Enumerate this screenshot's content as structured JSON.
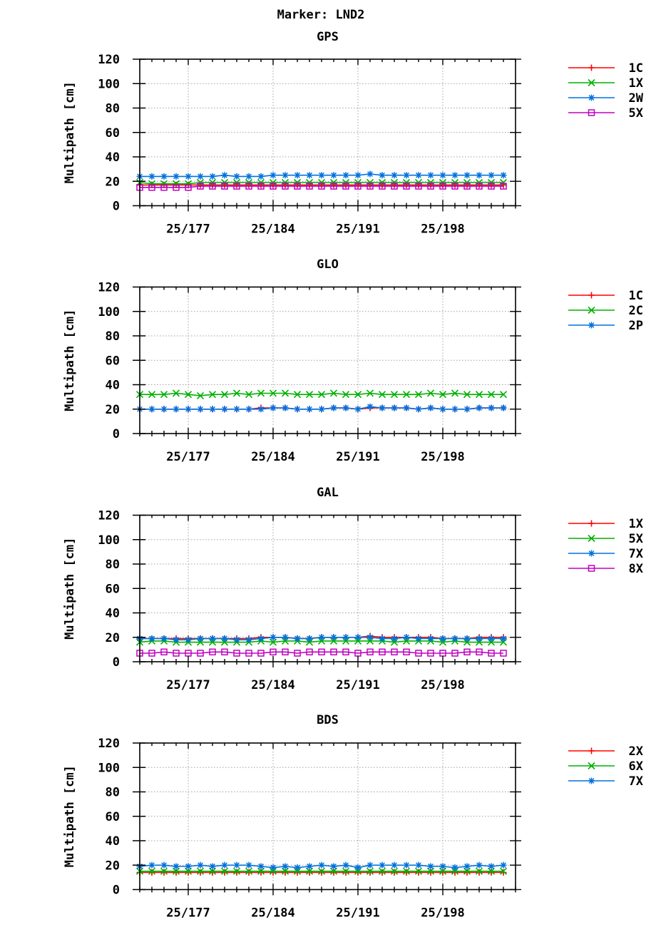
{
  "title": "Marker: LND2",
  "ylabel": "Multipath [cm]",
  "chart_data": [
    {
      "type": "line",
      "title": "GPS",
      "ylabel": "Multipath [cm]",
      "ylim": [
        0,
        120
      ],
      "yticks": [
        0,
        20,
        40,
        60,
        80,
        100,
        120
      ],
      "xlim": [
        173,
        204
      ],
      "xticks": [
        177,
        184,
        191,
        198
      ],
      "xtick_labels": [
        "25/177",
        "25/184",
        "25/191",
        "25/198"
      ],
      "grid": true,
      "legend_position": "right",
      "x": [
        173,
        174,
        175,
        176,
        177,
        178,
        179,
        180,
        181,
        182,
        183,
        184,
        185,
        186,
        187,
        188,
        189,
        190,
        191,
        192,
        193,
        194,
        195,
        196,
        197,
        198,
        199,
        200,
        201,
        202,
        203
      ],
      "series": [
        {
          "name": "1C",
          "color": "#ff0000",
          "marker": "plus",
          "values": [
            17,
            17,
            17,
            17,
            17,
            17,
            17,
            17,
            17,
            17,
            17,
            17,
            17,
            17,
            17,
            17,
            17,
            17,
            17,
            17,
            17,
            17,
            17,
            17,
            17,
            17,
            17,
            17,
            17,
            17,
            17
          ]
        },
        {
          "name": "1X",
          "color": "#00b000",
          "marker": "cross",
          "values": [
            19,
            18,
            18,
            18,
            18,
            19,
            19,
            19,
            19,
            19,
            19,
            19,
            19,
            19,
            19,
            19,
            19,
            19,
            19,
            19,
            19,
            19,
            19,
            19,
            19,
            19,
            19,
            19,
            19,
            19,
            19
          ]
        },
        {
          "name": "2W",
          "color": "#0070e0",
          "marker": "star",
          "values": [
            24,
            24,
            24,
            24,
            24,
            24,
            24,
            25,
            24,
            24,
            24,
            25,
            25,
            25,
            25,
            25,
            25,
            25,
            25,
            26,
            25,
            25,
            25,
            25,
            25,
            25,
            25,
            25,
            25,
            25,
            25
          ]
        },
        {
          "name": "5X",
          "color": "#c000c0",
          "marker": "square",
          "values": [
            15,
            15,
            15,
            15,
            15,
            16,
            16,
            16,
            16,
            16,
            16,
            16,
            16,
            16,
            16,
            16,
            16,
            16,
            16,
            16,
            16,
            16,
            16,
            16,
            16,
            16,
            16,
            16,
            16,
            16,
            16
          ]
        }
      ]
    },
    {
      "type": "line",
      "title": "GLO",
      "ylabel": "Multipath [cm]",
      "ylim": [
        0,
        120
      ],
      "yticks": [
        0,
        20,
        40,
        60,
        80,
        100,
        120
      ],
      "xlim": [
        173,
        204
      ],
      "xticks": [
        177,
        184,
        191,
        198
      ],
      "xtick_labels": [
        "25/177",
        "25/184",
        "25/191",
        "25/198"
      ],
      "grid": true,
      "legend_position": "right",
      "x": [
        173,
        174,
        175,
        176,
        177,
        178,
        179,
        180,
        181,
        182,
        183,
        184,
        185,
        186,
        187,
        188,
        189,
        190,
        191,
        192,
        193,
        194,
        195,
        196,
        197,
        198,
        199,
        200,
        201,
        202,
        203
      ],
      "series": [
        {
          "name": "1C",
          "color": "#ff0000",
          "marker": "plus",
          "values": [
            20,
            20,
            20,
            20,
            20,
            20,
            20,
            20,
            20,
            20,
            21,
            21,
            21,
            20,
            20,
            20,
            21,
            21,
            20,
            21,
            21,
            21,
            21,
            20,
            21,
            20,
            20,
            20,
            21,
            21,
            21
          ]
        },
        {
          "name": "2C",
          "color": "#00b000",
          "marker": "cross",
          "values": [
            32,
            32,
            32,
            33,
            32,
            31,
            32,
            32,
            33,
            32,
            33,
            33,
            33,
            32,
            32,
            32,
            33,
            32,
            32,
            33,
            32,
            32,
            32,
            32,
            33,
            32,
            33,
            32,
            32,
            32,
            32
          ]
        },
        {
          "name": "2P",
          "color": "#0070e0",
          "marker": "star",
          "values": [
            20,
            20,
            20,
            20,
            20,
            20,
            20,
            20,
            20,
            20,
            20,
            21,
            21,
            20,
            20,
            20,
            21,
            21,
            20,
            22,
            21,
            21,
            21,
            20,
            21,
            20,
            20,
            20,
            21,
            21,
            21
          ]
        }
      ]
    },
    {
      "type": "line",
      "title": "GAL",
      "ylabel": "Multipath [cm]",
      "ylim": [
        0,
        120
      ],
      "yticks": [
        0,
        20,
        40,
        60,
        80,
        100,
        120
      ],
      "xlim": [
        173,
        204
      ],
      "xticks": [
        177,
        184,
        191,
        198
      ],
      "xtick_labels": [
        "25/177",
        "25/184",
        "25/191",
        "25/198"
      ],
      "grid": true,
      "legend_position": "right",
      "x": [
        173,
        174,
        175,
        176,
        177,
        178,
        179,
        180,
        181,
        182,
        183,
        184,
        185,
        186,
        187,
        188,
        189,
        190,
        191,
        192,
        193,
        194,
        195,
        196,
        197,
        198,
        199,
        200,
        201,
        202,
        203
      ],
      "series": [
        {
          "name": "1X",
          "color": "#ff0000",
          "marker": "plus",
          "values": [
            19,
            19,
            19,
            19,
            19,
            19,
            19,
            19,
            19,
            19,
            20,
            20,
            20,
            19,
            19,
            20,
            20,
            20,
            20,
            21,
            20,
            20,
            20,
            20,
            20,
            19,
            19,
            19,
            20,
            20,
            20
          ]
        },
        {
          "name": "5X",
          "color": "#00b000",
          "marker": "cross",
          "values": [
            16,
            17,
            17,
            16,
            16,
            16,
            16,
            16,
            16,
            16,
            17,
            16,
            17,
            17,
            16,
            17,
            17,
            17,
            17,
            17,
            17,
            16,
            17,
            17,
            17,
            16,
            17,
            16,
            16,
            16,
            16
          ]
        },
        {
          "name": "7X",
          "color": "#0070e0",
          "marker": "star",
          "values": [
            19,
            19,
            19,
            18,
            18,
            19,
            19,
            19,
            18,
            18,
            19,
            20,
            20,
            19,
            19,
            20,
            20,
            20,
            20,
            20,
            19,
            19,
            20,
            19,
            19,
            19,
            19,
            19,
            19,
            19,
            19
          ]
        },
        {
          "name": "8X",
          "color": "#c000c0",
          "marker": "square",
          "values": [
            7,
            7,
            8,
            7,
            7,
            7,
            8,
            8,
            7,
            7,
            7,
            8,
            8,
            7,
            8,
            8,
            8,
            8,
            7,
            8,
            8,
            8,
            8,
            7,
            7,
            7,
            7,
            8,
            8,
            7,
            7
          ]
        }
      ]
    },
    {
      "type": "line",
      "title": "BDS",
      "ylabel": "Multipath [cm]",
      "ylim": [
        0,
        120
      ],
      "yticks": [
        0,
        20,
        40,
        60,
        80,
        100,
        120
      ],
      "xlim": [
        173,
        204
      ],
      "xticks": [
        177,
        184,
        191,
        198
      ],
      "xtick_labels": [
        "25/177",
        "25/184",
        "25/191",
        "25/198"
      ],
      "grid": true,
      "legend_position": "right",
      "x": [
        173,
        174,
        175,
        176,
        177,
        178,
        179,
        180,
        181,
        182,
        183,
        184,
        185,
        186,
        187,
        188,
        189,
        190,
        191,
        192,
        193,
        194,
        195,
        196,
        197,
        198,
        199,
        200,
        201,
        202,
        203
      ],
      "series": [
        {
          "name": "2X",
          "color": "#ff0000",
          "marker": "plus",
          "values": [
            14,
            14,
            14,
            14,
            14,
            14,
            14,
            14,
            14,
            14,
            14,
            14,
            14,
            14,
            14,
            14,
            14,
            14,
            14,
            14,
            14,
            14,
            14,
            14,
            14,
            14,
            14,
            14,
            14,
            14,
            14
          ]
        },
        {
          "name": "6X",
          "color": "#00b000",
          "marker": "cross",
          "values": [
            15,
            15,
            15,
            15,
            15,
            15,
            15,
            15,
            15,
            15,
            15,
            15,
            15,
            15,
            15,
            15,
            15,
            15,
            15,
            15,
            15,
            15,
            15,
            15,
            15,
            15,
            15,
            15,
            15,
            15,
            15
          ]
        },
        {
          "name": "7X",
          "color": "#0070e0",
          "marker": "star",
          "values": [
            19,
            20,
            20,
            19,
            19,
            20,
            19,
            20,
            20,
            20,
            19,
            18,
            19,
            18,
            19,
            20,
            19,
            20,
            18,
            20,
            20,
            20,
            20,
            20,
            19,
            19,
            18,
            19,
            20,
            19,
            20
          ]
        }
      ]
    }
  ]
}
